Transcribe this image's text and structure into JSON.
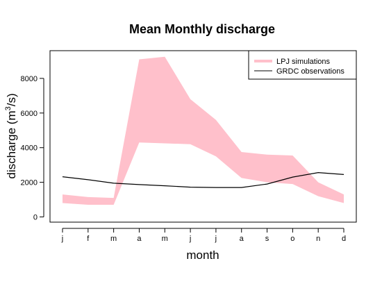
{
  "chart_data": {
    "type": "area",
    "title": "Mean Monthly discharge",
    "xlabel": "month",
    "ylabel_prefix": "discharge (m",
    "ylabel_sup": "3",
    "ylabel_suffix": "/s)",
    "categories": [
      "j",
      "f",
      "m",
      "a",
      "m",
      "j",
      "j",
      "a",
      "s",
      "o",
      "n",
      "d"
    ],
    "ylim": [
      -300,
      9600
    ],
    "yticks": [
      0,
      2000,
      4000,
      6000,
      8000
    ],
    "grid": false,
    "legend_position": "top-right",
    "colors": {
      "band": "#ffc0cb",
      "line": "#000000"
    },
    "series": [
      {
        "name": "LPJ simulations",
        "kind": "band",
        "lower": [
          800,
          700,
          700,
          4300,
          4250,
          4200,
          3500,
          2250,
          2000,
          1900,
          1200,
          800
        ],
        "upper": [
          1300,
          1150,
          1100,
          9100,
          9250,
          6800,
          5600,
          3750,
          3600,
          3550,
          2000,
          1300
        ]
      },
      {
        "name": "GRDC observations",
        "kind": "line",
        "values": [
          2320,
          2150,
          1950,
          1870,
          1800,
          1720,
          1700,
          1700,
          1900,
          2300,
          2560,
          2450
        ]
      }
    ]
  }
}
